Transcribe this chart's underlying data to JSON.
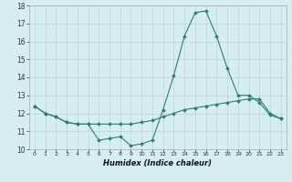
{
  "xlabel": "Humidex (Indice chaleur)",
  "x_values": [
    0,
    1,
    2,
    3,
    4,
    5,
    6,
    7,
    8,
    9,
    10,
    11,
    12,
    13,
    14,
    15,
    16,
    17,
    18,
    19,
    20,
    21,
    22,
    23
  ],
  "y_line1": [
    12.4,
    12.0,
    11.8,
    11.5,
    11.4,
    11.4,
    10.5,
    10.6,
    10.7,
    10.2,
    10.3,
    10.5,
    12.2,
    14.1,
    16.3,
    17.6,
    17.7,
    16.3,
    14.5,
    13.0,
    13.0,
    12.6,
    11.9,
    11.7
  ],
  "y_line2": [
    12.4,
    12.0,
    11.8,
    11.5,
    11.4,
    11.4,
    11.4,
    11.4,
    11.4,
    11.4,
    11.5,
    11.6,
    11.8,
    12.0,
    12.2,
    12.3,
    12.4,
    12.5,
    12.6,
    12.7,
    12.8,
    12.8,
    12.0,
    11.7
  ],
  "line_color": "#2e7d6e",
  "bg_color": "#d6eef0",
  "grid_color": "#b8d4d8",
  "ylim": [
    10,
    18
  ],
  "xlim": [
    -0.5,
    23.5
  ],
  "yticks": [
    10,
    11,
    12,
    13,
    14,
    15,
    16,
    17,
    18
  ],
  "xticks": [
    0,
    1,
    2,
    3,
    4,
    5,
    6,
    7,
    8,
    9,
    10,
    11,
    12,
    13,
    14,
    15,
    16,
    17,
    18,
    19,
    20,
    21,
    22,
    23
  ],
  "xlabel_fontsize": 6.0,
  "tick_fontsize": 4.5,
  "ytick_fontsize": 5.5,
  "linewidth": 0.8,
  "markersize": 2.0
}
